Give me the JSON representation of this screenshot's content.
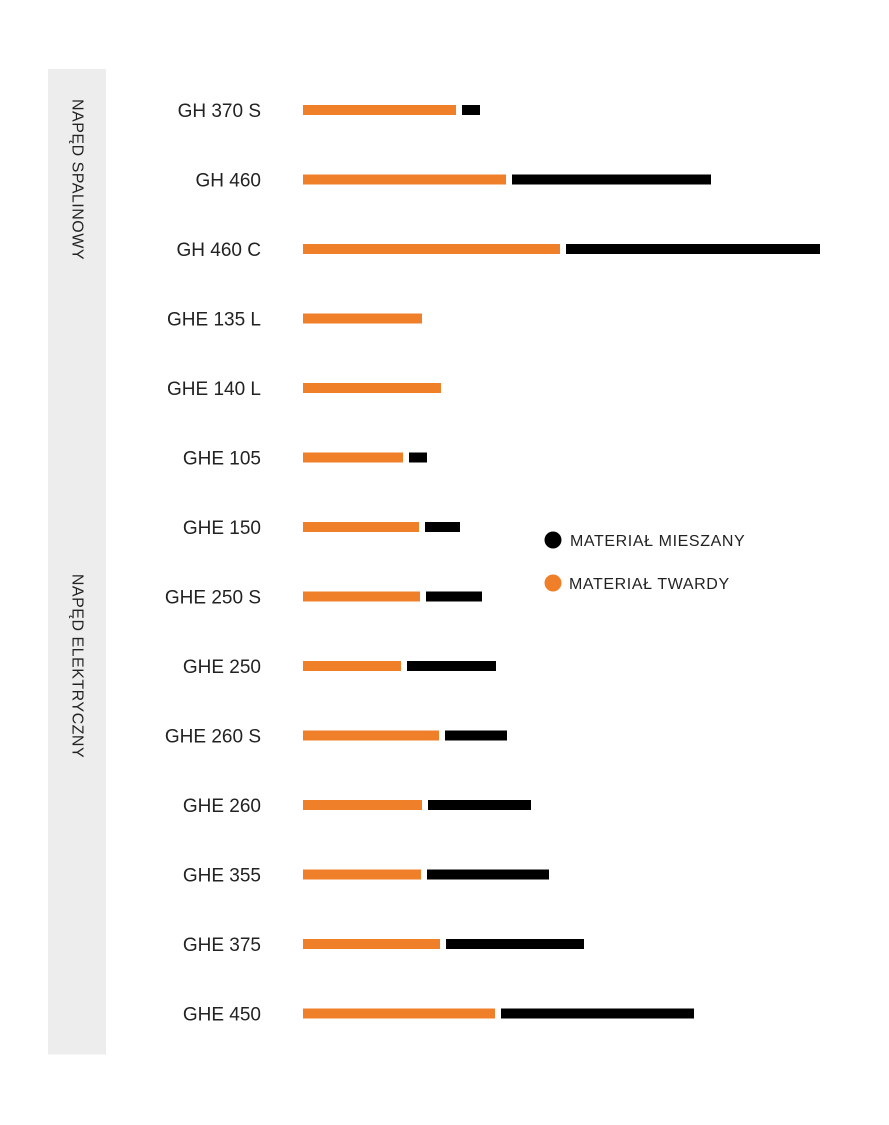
{
  "colors": {
    "hard": "#F07F2A",
    "mixed": "#000000",
    "group_bg": "#EDEDED",
    "text": "#222222"
  },
  "groups": [
    {
      "label": "NAPĘD SPALINOWY",
      "start": 0,
      "end": 2
    },
    {
      "label": "NAPĘD ELEKTRYCZNY",
      "start": 3,
      "end": 13
    }
  ],
  "legend": {
    "items": [
      {
        "label": "MATERIAŁ MIESZANY",
        "color_key": "mixed",
        "icon": "black-circle-icon"
      },
      {
        "label": "MATERIAŁ TWARDY",
        "color_key": "hard",
        "icon": "orange-circle-icon"
      }
    ]
  },
  "chart_data": {
    "type": "bar",
    "orientation": "horizontal",
    "stacked": true,
    "categories": [
      "GH 370 S",
      "GH 460",
      "GH 460 C",
      "GHE 135 L",
      "GHE 140 L",
      "GHE 105",
      "GHE 150",
      "GHE 250 S",
      "GHE 250",
      "GHE 260 S",
      "GHE 260",
      "GHE 355",
      "GHE 375",
      "GHE 450"
    ],
    "series": [
      {
        "name": "MATERIAŁ TWARDY",
        "color": "#F07F2A",
        "values": [
          153,
          203,
          257,
          119,
          138,
          100,
          116,
          117,
          98,
          136,
          119,
          118,
          137,
          192
        ]
      },
      {
        "name": "MATERIAŁ MIESZANY",
        "color": "#000000",
        "values": [
          18,
          199,
          254,
          0,
          0,
          18,
          35,
          56,
          89,
          62,
          103,
          122,
          138,
          193
        ]
      }
    ],
    "xlim": [
      0,
      520
    ],
    "xlabel": "",
    "ylabel": "",
    "grid": false,
    "legend_position": "right-middle"
  }
}
